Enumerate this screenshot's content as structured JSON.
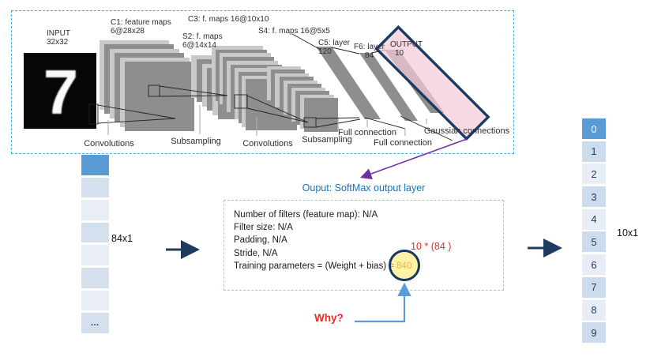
{
  "lenet": {
    "input_label": [
      "INPUT",
      "32x32"
    ],
    "digit": "7",
    "c1_label": [
      "C1: feature maps",
      "6@28x28"
    ],
    "s2_label": [
      "S2: f. maps",
      "6@14x14"
    ],
    "c3_label": "C3: f. maps 16@10x10",
    "s4_label": "S4: f. maps 16@5x5",
    "c5_label": [
      "C5: layer",
      "120"
    ],
    "f6_label": [
      "F6: layer",
      "84"
    ],
    "output_label": [
      "OUTPUT",
      "10"
    ],
    "captions": {
      "conv1": "Convolutions",
      "sub1": "Subsampling",
      "conv2": "Convolutions",
      "sub2": "Subsampling",
      "full1": "Full connection",
      "full2": "Full connection",
      "gauss": "Gaussian connections"
    }
  },
  "softmax": {
    "title": "Ouput: SoftMax output layer",
    "properties": [
      "Number of filters (feature map): N/A",
      "Filter size: N/A",
      "Padding, N/A",
      "Stride, N/A"
    ],
    "training_line_prefix": "Training parameters = (Weight + bias) =",
    "training_value": "840",
    "calc_note": "10 * (84 )",
    "why": "Why?"
  },
  "left_vector": {
    "label": "84x1",
    "cells": [
      "",
      "",
      "",
      "",
      "",
      "",
      "",
      "…"
    ]
  },
  "right_vector": {
    "label": "10x1",
    "cells": [
      "0",
      "1",
      "2",
      "3",
      "4",
      "5",
      "6",
      "7",
      "8",
      "9"
    ]
  },
  "colors": {
    "accent_blue": "#5b9bd5",
    "navy": "#1e3a5c",
    "title_blue": "#0f76c8",
    "red": "#ed2a24",
    "orange": "#e7662b",
    "green_border": "#a9d18e",
    "cyan_border": "#3fb2e6",
    "pink_fill": "#f2cbd5",
    "purple": "#7030a0"
  }
}
